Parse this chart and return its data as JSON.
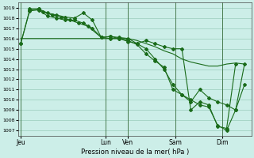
{
  "background_color": "#cceee8",
  "grid_color": "#99ccbb",
  "line_color": "#1a6b1a",
  "marker_color": "#1a6b1a",
  "ylim": [
    1006.5,
    1019.5
  ],
  "yticks": [
    1007,
    1008,
    1009,
    1010,
    1011,
    1012,
    1013,
    1014,
    1015,
    1016,
    1017,
    1018,
    1019
  ],
  "xlabel": "Pression niveau de la mer( hPa )",
  "day_labels": [
    "Jeu",
    "Lun",
    "Ven",
    "Sam",
    "Dim"
  ],
  "day_positions": [
    0.0,
    0.38,
    0.48,
    0.69,
    0.9
  ],
  "series1_x": [
    0.0,
    0.04,
    0.08,
    0.12,
    0.16,
    0.2,
    0.24,
    0.28,
    0.32,
    0.36,
    0.4,
    0.44,
    0.48,
    0.52,
    0.56,
    0.6,
    0.64,
    0.68,
    0.72,
    0.76,
    0.8,
    0.84,
    0.88,
    0.92,
    0.96,
    1.0
  ],
  "series1_y": [
    1016.0,
    1016.0,
    1016.0,
    1016.0,
    1016.0,
    1016.0,
    1016.0,
    1016.0,
    1016.0,
    1016.0,
    1016.0,
    1016.0,
    1016.0,
    1015.8,
    1015.5,
    1015.2,
    1014.8,
    1014.5,
    1014.0,
    1013.7,
    1013.5,
    1013.3,
    1013.3,
    1013.5,
    1013.6,
    1013.5
  ],
  "series2_x": [
    0.0,
    0.04,
    0.08,
    0.1,
    0.14,
    0.18,
    0.22,
    0.26,
    0.3,
    0.36,
    0.4,
    0.44,
    0.48,
    0.52,
    0.56,
    0.6,
    0.64,
    0.68,
    0.72,
    0.76,
    0.8,
    0.84,
    0.88,
    0.92,
    0.96,
    1.0
  ],
  "series2_y": [
    1015.5,
    1018.8,
    1018.9,
    1018.6,
    1018.3,
    1018.1,
    1017.8,
    1017.5,
    1017.2,
    1016.1,
    1016.2,
    1016.1,
    1016.0,
    1015.5,
    1015.0,
    1014.0,
    1013.0,
    1011.5,
    1010.5,
    1010.0,
    1009.5,
    1009.3,
    1007.5,
    1007.0,
    1009.0,
    1013.5
  ],
  "series3_x": [
    0.0,
    0.04,
    0.08,
    0.12,
    0.16,
    0.2,
    0.24,
    0.28,
    0.32,
    0.36,
    0.4,
    0.44,
    0.48,
    0.52,
    0.56,
    0.6,
    0.64,
    0.68,
    0.72,
    0.76,
    0.8,
    0.84,
    0.88,
    0.92,
    0.96,
    1.0
  ],
  "series3_y": [
    1015.5,
    1018.7,
    1018.8,
    1018.2,
    1018.0,
    1017.8,
    1017.8,
    1017.5,
    1017.0,
    1016.1,
    1016.0,
    1016.0,
    1015.8,
    1015.4,
    1014.5,
    1013.8,
    1013.2,
    1011.0,
    1010.5,
    1009.8,
    1011.0,
    1010.2,
    1009.8,
    1009.5,
    1009.0,
    1011.5
  ],
  "series4_x": [
    0.04,
    0.08,
    0.12,
    0.16,
    0.2,
    0.24,
    0.28,
    0.32,
    0.36,
    0.4,
    0.44,
    0.48,
    0.52,
    0.56,
    0.6,
    0.64,
    0.68,
    0.72,
    0.76,
    0.8,
    0.84,
    0.88,
    0.92,
    0.96
  ],
  "series4_y": [
    1018.9,
    1018.9,
    1018.5,
    1018.3,
    1018.1,
    1018.0,
    1018.5,
    1017.8,
    1016.1,
    1016.2,
    1016.0,
    1015.7,
    1015.5,
    1015.8,
    1015.5,
    1015.2,
    1015.0,
    1015.0,
    1009.0,
    1009.8,
    1009.5,
    1007.4,
    1007.2,
    1013.5
  ]
}
